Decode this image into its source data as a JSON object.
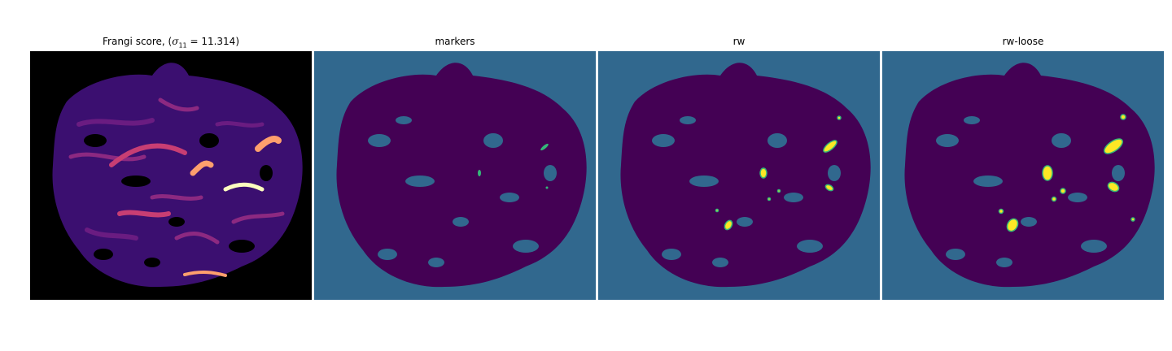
{
  "panels": [
    {
      "title_prefix": "Frangi score, (",
      "title_math_symbol": "σ",
      "title_math_sub": "11",
      "title_math_rest": " = 11.314)",
      "colormap": "magma",
      "background": "#000000"
    },
    {
      "title": "markers",
      "colormap": "viridis",
      "background": "#31688e"
    },
    {
      "title": "rw",
      "colormap": "viridis",
      "background": "#31688e"
    },
    {
      "title": "rw-loose",
      "colormap": "viridis",
      "background": "#31688e"
    }
  ],
  "colors": {
    "viridis_dark": "#440154",
    "viridis_mid": "#31688e",
    "viridis_green": "#35b779",
    "viridis_yellow": "#fde725",
    "magma_black": "#000004",
    "magma_purple": "#3b0f70",
    "magma_violet": "#8c2981",
    "magma_orange": "#fe9f6d",
    "magma_light": "#fcfdbf"
  }
}
